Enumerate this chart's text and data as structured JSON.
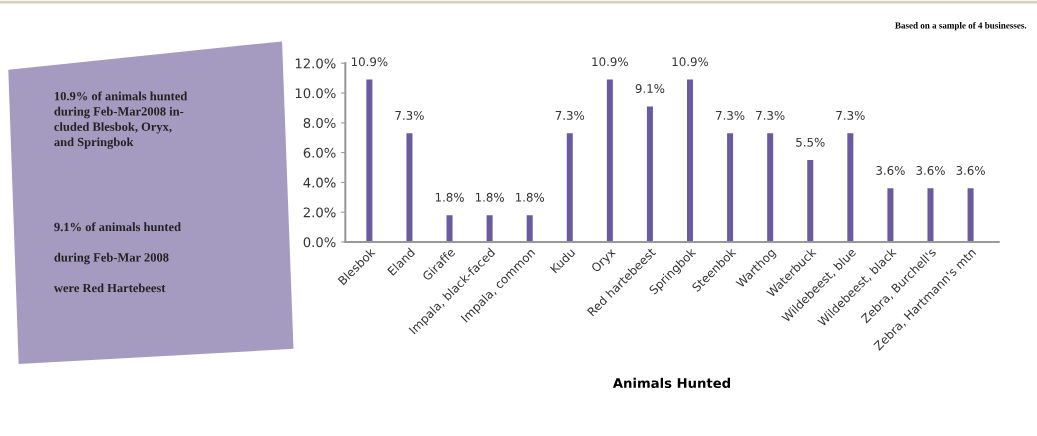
{
  "chart_data": {
    "type": "bar",
    "xlabel": "Animals Hunted",
    "categories": [
      "Blesbok",
      "Eland",
      "Giraffe",
      "Impala, black-faced",
      "Impala, common",
      "Kudu",
      "Oryx",
      "Red hartebeest",
      "Springbok",
      "Steenbok",
      "Warthog",
      "Waterbuck",
      "Wildebeest, blue",
      "Wildebeest, black",
      "Zebra, Burchell's",
      "Zebra, Hartmann's mtn"
    ],
    "values": [
      10.9,
      7.3,
      1.8,
      1.8,
      1.8,
      7.3,
      10.9,
      9.1,
      10.9,
      7.3,
      7.3,
      5.5,
      7.3,
      3.6,
      3.6,
      3.6
    ],
    "value_labels": [
      "10.9%",
      "7.3%",
      "1.8%",
      "1.8%",
      "1.8%",
      "7.3%",
      "10.9%",
      "9.1%",
      "10.9%",
      "7.3%",
      "7.3%",
      "5.5%",
      "7.3%",
      "3.6%",
      "3.6%",
      "3.6%"
    ],
    "color": "#6a5a9e",
    "ylim": [
      0,
      12
    ],
    "yticks": [
      {
        "value": 0,
        "label": "0.0%"
      },
      {
        "value": 2,
        "label": "2.0%"
      },
      {
        "value": 4,
        "label": "4.0%"
      },
      {
        "value": 6,
        "label": "6.0%"
      },
      {
        "value": 8,
        "label": "8.0%"
      },
      {
        "value": 10,
        "label": "10.0%"
      },
      {
        "value": 12,
        "label": "12.0%"
      }
    ],
    "grid": false,
    "annotations": [
      "Based on a sample of 4 businesses.",
      "10.9% of animals hunted\nduring Feb-Mar2008 in-\ncluded Blesbok, Oryx,\nand Springbok",
      "9.1% of animals hunted\n\nduring Feb-Mar 2008\n\nwere Red Hartebeest"
    ]
  }
}
